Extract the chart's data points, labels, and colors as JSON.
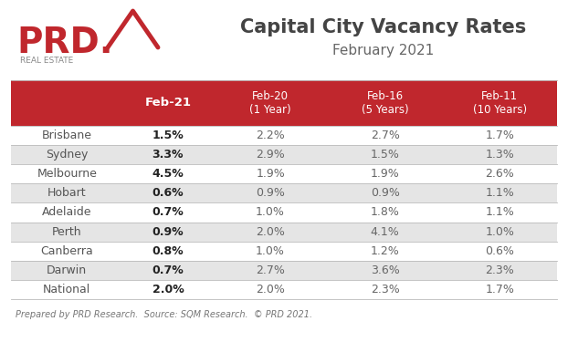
{
  "title_line1": "Capital City Vacancy Rates",
  "title_line2": "February 2021",
  "footer": "Prepared by PRD Research.  Source: SQM Research.  © PRD 2021.",
  "col_headers": [
    "Feb-21",
    "Feb-20\n(1 Year)",
    "Feb-16\n(5 Years)",
    "Feb-11\n(10 Years)"
  ],
  "rows": [
    [
      "Brisbane",
      "1.5%",
      "2.2%",
      "2.7%",
      "1.7%"
    ],
    [
      "Sydney",
      "3.3%",
      "2.9%",
      "1.5%",
      "1.3%"
    ],
    [
      "Melbourne",
      "4.5%",
      "1.9%",
      "1.9%",
      "2.6%"
    ],
    [
      "Hobart",
      "0.6%",
      "0.9%",
      "0.9%",
      "1.1%"
    ],
    [
      "Adelaide",
      "0.7%",
      "1.0%",
      "1.8%",
      "1.1%"
    ],
    [
      "Perth",
      "0.9%",
      "2.0%",
      "4.1%",
      "1.0%"
    ],
    [
      "Canberra",
      "0.8%",
      "1.0%",
      "1.2%",
      "0.6%"
    ],
    [
      "Darwin",
      "0.7%",
      "2.7%",
      "3.6%",
      "2.3%"
    ],
    [
      "National",
      "2.0%",
      "2.0%",
      "2.3%",
      "1.7%"
    ]
  ],
  "header_bg": "#C0272D",
  "header_text_color": "#FFFFFF",
  "row_alt_colors": [
    "#FFFFFF",
    "#E5E5E5"
  ],
  "city_text_color": "#555555",
  "data_text_color": "#666666",
  "feb21_text_color": "#222222",
  "border_color": "#BBBBBB",
  "background_color": "#FFFFFF",
  "prd_red": "#C0272D",
  "prd_gray": "#888888",
  "title_color": "#444444",
  "subtitle_color": "#666666"
}
